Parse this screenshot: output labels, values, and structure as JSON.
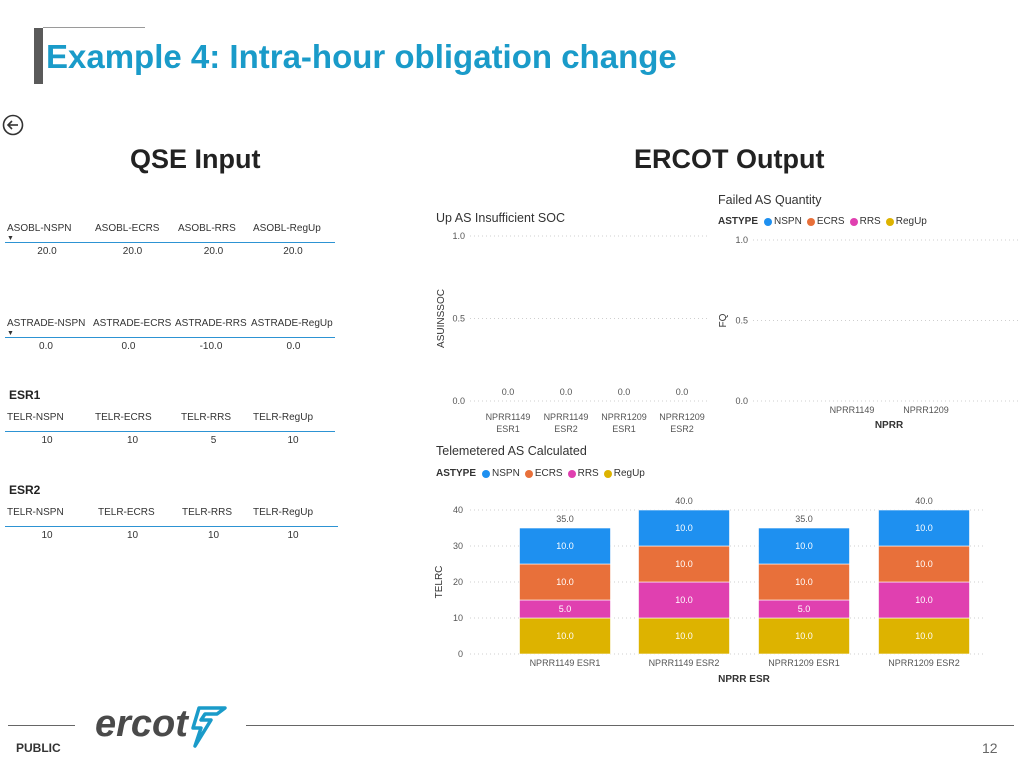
{
  "header": {
    "title": "Example 4: Intra-hour obligation change"
  },
  "qse_input": {
    "heading": "QSE Input",
    "asobl": {
      "headers": [
        "ASOBL-NSPN",
        "ASOBL-ECRS",
        "ASOBL-RRS",
        "ASOBL-RegUp"
      ],
      "values": [
        "20.0",
        "20.0",
        "20.0",
        "20.0"
      ]
    },
    "astrade": {
      "headers": [
        "ASTRADE-NSPN",
        "ASTRADE-ECRS",
        "ASTRADE-RRS",
        "ASTRADE-RegUp"
      ],
      "values": [
        "0.0",
        "0.0",
        "-10.0",
        "0.0"
      ]
    },
    "esr1": {
      "label": "ESR1",
      "headers": [
        "TELR-NSPN",
        "TELR-ECRS",
        "TELR-RRS",
        "TELR-RegUp"
      ],
      "values": [
        "10",
        "10",
        "5",
        "10"
      ]
    },
    "esr2": {
      "label": "ESR2",
      "headers": [
        "TELR-NSPN",
        "TELR-ECRS",
        "TELR-RRS",
        "TELR-RegUp"
      ],
      "values": [
        "10",
        "10",
        "10",
        "10"
      ]
    }
  },
  "ercot_output": {
    "heading": "ERCOT Output"
  },
  "legend": {
    "title": "ASTYPE",
    "items": [
      {
        "name": "NSPN",
        "color": "#1e90f0"
      },
      {
        "name": "ECRS",
        "color": "#e8703a"
      },
      {
        "name": "RRS",
        "color": "#e040b0"
      },
      {
        "name": "RegUp",
        "color": "#ddb300"
      }
    ]
  },
  "chart_data": [
    {
      "type": "bar",
      "title": "Up AS Insufficient SOC",
      "ylabel": "ASUINSSOC",
      "xlabel": "",
      "categories": [
        [
          "NPRR1149",
          "ESR1"
        ],
        [
          "NPRR1149",
          "ESR2"
        ],
        [
          "NPRR1209",
          "ESR1"
        ],
        [
          "NPRR1209",
          "ESR2"
        ]
      ],
      "values": [
        0.0,
        0.0,
        0.0,
        0.0
      ],
      "data_labels": [
        "0.0",
        "0.0",
        "0.0",
        "0.0"
      ],
      "ylim": [
        0,
        1.0
      ],
      "yticks": [
        "0.0",
        "0.5",
        "1.0"
      ],
      "grid": true
    },
    {
      "type": "bar",
      "title": "Failed AS Quantity",
      "ylabel": "FQ",
      "xlabel": "NPRR",
      "categories": [
        "NPRR1149",
        "NPRR1209"
      ],
      "values": [
        0,
        0
      ],
      "ylim": [
        0,
        1.0
      ],
      "yticks": [
        "0.0",
        "0.5",
        "1.0"
      ],
      "legend": "top-left",
      "grid": true
    },
    {
      "type": "bar",
      "stacked": true,
      "title": "Telemetered AS Calculated",
      "ylabel": "TELRC",
      "xlabel": "NPRR ESR",
      "categories": [
        "NPRR1149 ESR1",
        "NPRR1149 ESR2",
        "NPRR1209 ESR1",
        "NPRR1209 ESR2"
      ],
      "series": [
        {
          "name": "RegUp",
          "values": [
            10,
            10,
            10,
            10
          ],
          "color": "#ddb300"
        },
        {
          "name": "RRS",
          "values": [
            5,
            10,
            5,
            10
          ],
          "color": "#e040b0"
        },
        {
          "name": "ECRS",
          "values": [
            10,
            10,
            10,
            10
          ],
          "color": "#e8703a"
        },
        {
          "name": "NSPN",
          "values": [
            10,
            10,
            10,
            10
          ],
          "color": "#1e90f0"
        }
      ],
      "totals": [
        "35.0",
        "40.0",
        "35.0",
        "40.0"
      ],
      "ylim": [
        0,
        40
      ],
      "yticks": [
        "0",
        "10",
        "20",
        "30",
        "40"
      ],
      "legend": "top-left",
      "grid": true
    }
  ],
  "footer": {
    "public_label": "PUBLIC",
    "logo_text": "ercot",
    "page_number": "12"
  }
}
